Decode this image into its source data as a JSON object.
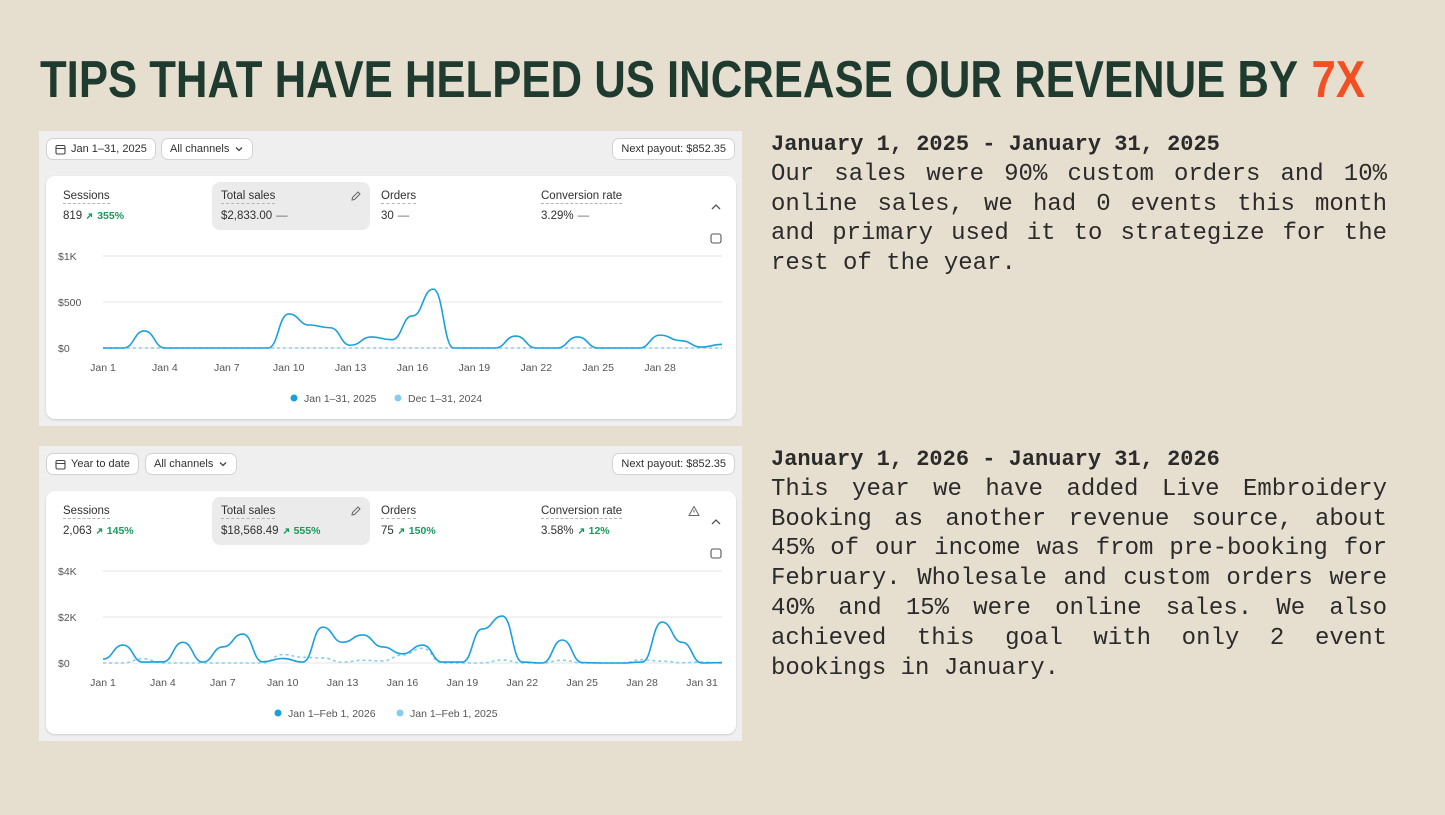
{
  "header": {
    "title": "TIPS THAT HAVE HELPED US INCREASE OUR REVENUE BY",
    "highlight": "7X"
  },
  "panels": [
    {
      "date_range": "Jan 1–31, 2025",
      "channels": "All channels",
      "payout": "Next payout: $852.35",
      "metrics": [
        {
          "label": "Sessions",
          "value": "819",
          "change": "355%",
          "trend": "up"
        },
        {
          "label": "Total sales",
          "value": "$2,833.00",
          "change": "—",
          "trend": "flat",
          "selected": true
        },
        {
          "label": "Orders",
          "value": "30",
          "change": "—",
          "trend": "flat"
        },
        {
          "label": "Conversion rate",
          "value": "3.29%",
          "change": "—",
          "trend": "flat"
        }
      ],
      "chart_data": {
        "type": "line",
        "categories": [
          "Jan 1",
          null,
          null,
          "Jan 4",
          null,
          null,
          "Jan 7",
          null,
          null,
          "Jan 10",
          null,
          null,
          "Jan 13",
          null,
          null,
          "Jan 16",
          null,
          null,
          "Jan 19",
          null,
          null,
          "Jan 22",
          null,
          null,
          "Jan 25",
          null,
          null,
          "Jan 28",
          null,
          null,
          null
        ],
        "series": [
          {
            "name": "Jan 1–31, 2025",
            "color": "#1ba0de",
            "style": "solid",
            "values": [
              0,
              0,
              185,
              0,
              0,
              0,
              0,
              0,
              0,
              370,
              250,
              220,
              30,
              120,
              90,
              350,
              640,
              0,
              0,
              0,
              130,
              0,
              0,
              120,
              0,
              0,
              0,
              140,
              80,
              10,
              40
            ]
          },
          {
            "name": "Dec 1–31, 2024",
            "color": "#86cdee",
            "style": "dashed",
            "values": [
              0,
              0,
              0,
              0,
              0,
              0,
              0,
              0,
              0,
              0,
              0,
              0,
              0,
              0,
              0,
              0,
              0,
              0,
              0,
              0,
              0,
              0,
              0,
              0,
              0,
              0,
              0,
              0,
              0,
              0,
              0
            ]
          }
        ],
        "ylim": [
          0,
          1000
        ],
        "yticks": [
          {
            "value": 0,
            "label": "$0"
          },
          {
            "value": 500,
            "label": "$500"
          },
          {
            "value": 1000,
            "label": "$1K"
          }
        ],
        "grid": true
      }
    },
    {
      "date_range": "Year to date",
      "channels": "All channels",
      "payout": "Next payout: $852.35",
      "metrics": [
        {
          "label": "Sessions",
          "value": "2,063",
          "change": "145%",
          "trend": "up"
        },
        {
          "label": "Total sales",
          "value": "$18,568.49",
          "change": "555%",
          "trend": "up",
          "selected": true
        },
        {
          "label": "Orders",
          "value": "75",
          "change": "150%",
          "trend": "up"
        },
        {
          "label": "Conversion rate",
          "value": "3.58%",
          "change": "12%",
          "trend": "up",
          "alert": true
        }
      ],
      "chart_data": {
        "type": "line",
        "categories": [
          "Jan 1",
          null,
          null,
          "Jan 4",
          null,
          null,
          "Jan 7",
          null,
          null,
          "Jan 10",
          null,
          null,
          "Jan 13",
          null,
          null,
          "Jan 16",
          null,
          null,
          "Jan 19",
          null,
          null,
          "Jan 22",
          null,
          null,
          "Jan 25",
          null,
          null,
          "Jan 28",
          null,
          null,
          "Jan 31",
          null
        ],
        "series": [
          {
            "name": "Jan 1–Feb 1, 2026",
            "color": "#1ba0de",
            "style": "solid",
            "values": [
              170,
              780,
              40,
              50,
              900,
              40,
              700,
              1260,
              50,
              200,
              40,
              1560,
              900,
              1220,
              700,
              400,
              780,
              40,
              40,
              1480,
              2040,
              40,
              0,
              1000,
              20,
              0,
              0,
              40,
              1780,
              900,
              0,
              20
            ]
          },
          {
            "name": "Jan 1–Feb 1, 2025",
            "color": "#86cdee",
            "style": "dashed",
            "values": [
              0,
              0,
              185,
              0,
              0,
              0,
              0,
              0,
              0,
              370,
              250,
              220,
              30,
              120,
              90,
              350,
              640,
              0,
              0,
              0,
              130,
              0,
              0,
              120,
              0,
              0,
              0,
              140,
              80,
              10,
              40,
              0
            ]
          }
        ],
        "ylim": [
          0,
          4000
        ],
        "yticks": [
          {
            "value": 0,
            "label": "$0"
          },
          {
            "value": 2000,
            "label": "$2K"
          },
          {
            "value": 4000,
            "label": "$4K"
          }
        ],
        "grid": true
      }
    }
  ],
  "notes": [
    {
      "heading": "January 1, 2025 - January 31, 2025",
      "body": "Our sales were 90% custom orders and 10% online sales, we had 0 events this month and primary used it to strategize for the rest of the year."
    },
    {
      "heading": "January 1, 2026 - January 31, 2026",
      "body": "This year we have added Live Embroidery Booking as another revenue source, about 45% of our income was from pre-booking for February. Wholesale and custom orders were 40% and 15% were online sales. We also achieved this goal with only 2 event bookings in January."
    }
  ]
}
